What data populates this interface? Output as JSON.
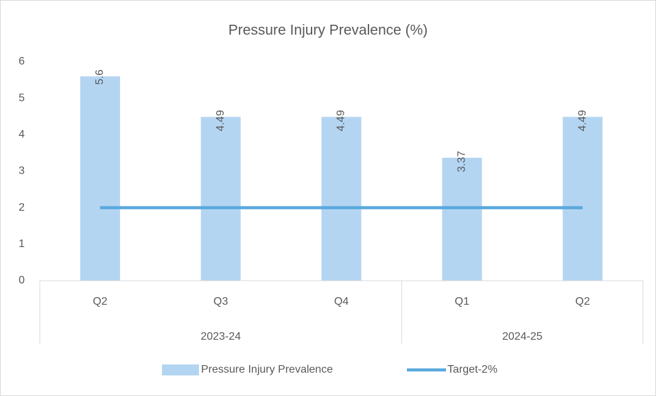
{
  "chart_data": {
    "type": "bar",
    "title": "Pressure Injury Prevalence (%)",
    "categories": [
      "Q2",
      "Q3",
      "Q4",
      "Q1",
      "Q2"
    ],
    "groups": [
      {
        "name": "2023-24",
        "count": 3
      },
      {
        "name": "2024-25",
        "count": 2
      }
    ],
    "series": [
      {
        "name": "Pressure Injury Prevalence",
        "type": "bar",
        "color": "#b4d5f2",
        "values": [
          5.6,
          4.49,
          4.49,
          3.37,
          4.49
        ]
      },
      {
        "name": "Target-2%",
        "type": "line",
        "color": "#5aa9de",
        "values": [
          2,
          2,
          2,
          2,
          2
        ]
      }
    ],
    "ylim": [
      0,
      6
    ],
    "yticks": [
      0,
      1,
      2,
      3,
      4,
      5,
      6
    ],
    "grid": false,
    "legend": "bottom"
  }
}
